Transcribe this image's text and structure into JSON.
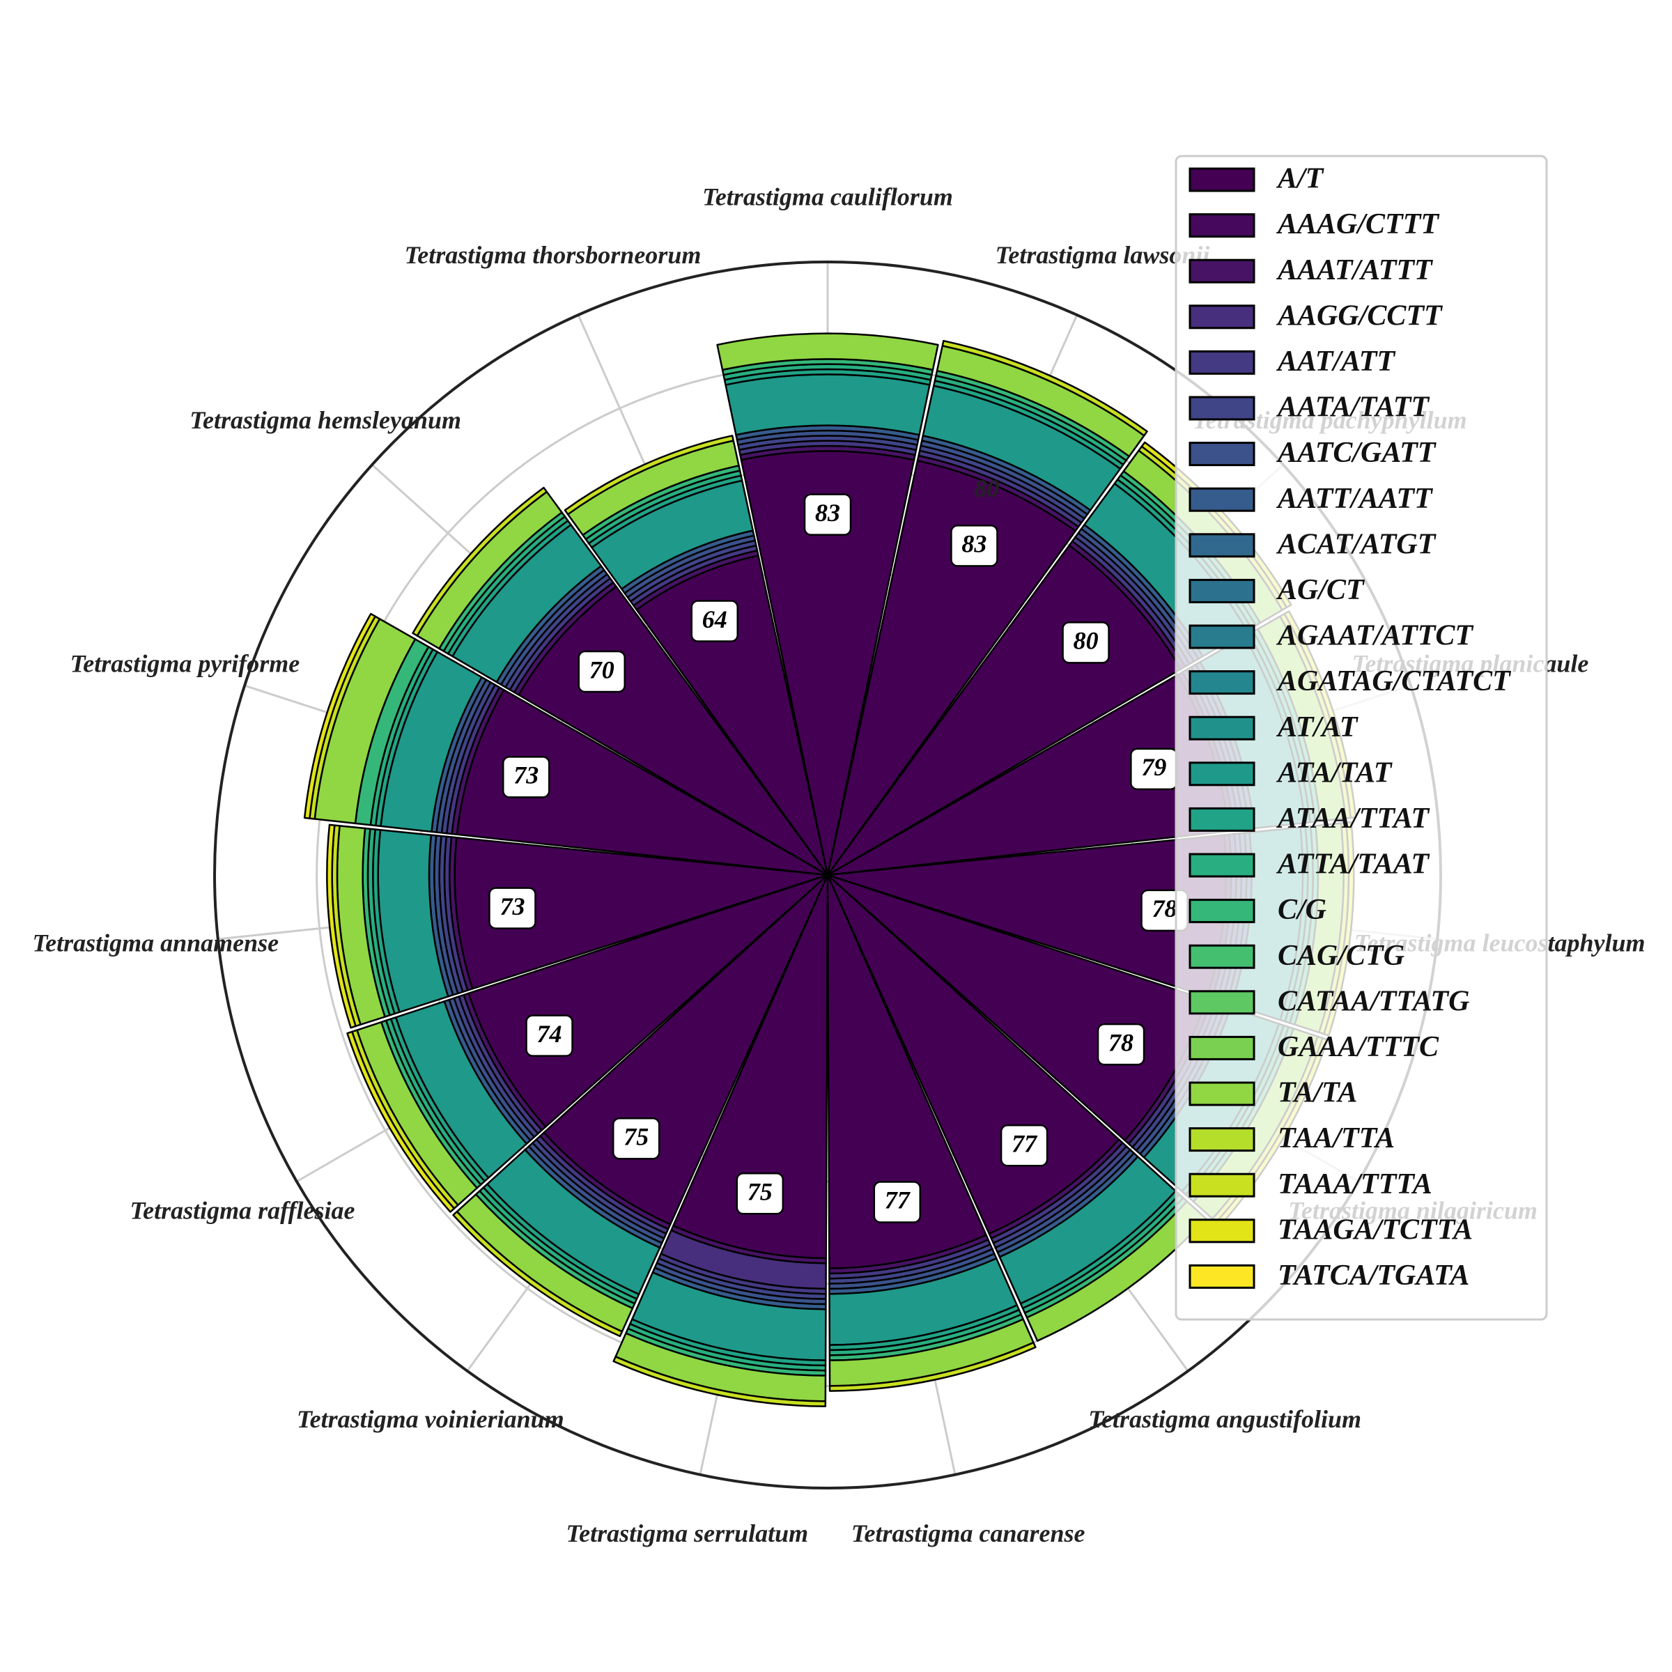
{
  "chart_data": {
    "type": "polar-stacked-bar",
    "title": "",
    "categories": [
      "Tetrastigma cauliflorum",
      "Tetrastigma lawsonii",
      "Tetrastigma pachyphyllum",
      "Tetrastigma planicaule",
      "Tetrastigma leucostaphylum",
      "Tetrastigma nilagiricum",
      "Tetrastigma angustifolium",
      "Tetrastigma canarense",
      "Tetrastigma serrulatum",
      "Tetrastigma voinierianum",
      "Tetrastigma rafflesiae",
      "Tetrastigma annamense",
      "Tetrastigma pyriforme",
      "Tetrastigma hemsleyanum",
      "Tetrastigma thorsborneorum"
    ],
    "radial_ticks": [
      20,
      40,
      60,
      80,
      100
    ],
    "radial_tick_labels_shown": [
      "80"
    ],
    "rmax": 120,
    "grid": true,
    "legend_position": "upper-right",
    "series": [
      {
        "name": "A/T",
        "color": "#440154",
        "values": [
          83,
          83,
          80,
          79,
          78,
          78,
          77,
          77,
          75,
          75,
          74,
          73,
          73,
          70,
          64
        ]
      },
      {
        "name": "AAAG/CTTT",
        "color": "#46085c",
        "values": [
          0,
          0,
          0,
          0,
          0,
          0,
          0,
          0,
          0,
          0,
          0,
          0,
          0,
          0,
          0
        ]
      },
      {
        "name": "AAAT/ATTT",
        "color": "#471365",
        "values": [
          1,
          1,
          1,
          1,
          1,
          1,
          1,
          1,
          1,
          1,
          1,
          1,
          1,
          1,
          1
        ]
      },
      {
        "name": "AAGG/CCTT",
        "color": "#472f7d",
        "values": [
          0,
          0,
          0,
          0,
          0,
          0,
          0,
          0,
          5,
          0,
          0,
          0,
          0,
          0,
          0
        ]
      },
      {
        "name": "AAT/ATT",
        "color": "#443983",
        "values": [
          1,
          1,
          1,
          1,
          1,
          1,
          1,
          1,
          1,
          1,
          1,
          1,
          1,
          1,
          1
        ]
      },
      {
        "name": "AATA/TATT",
        "color": "#404588",
        "values": [
          1,
          1,
          1,
          1,
          1,
          1,
          1,
          1,
          1,
          1,
          1,
          1,
          1,
          1,
          1
        ]
      },
      {
        "name": "AATC/GATT",
        "color": "#3b528b",
        "values": [
          1,
          1,
          1,
          1,
          1,
          1,
          1,
          1,
          1,
          1,
          1,
          1,
          1,
          1,
          1
        ]
      },
      {
        "name": "AATT/AATT",
        "color": "#365c8d",
        "values": [
          1,
          1,
          1,
          1,
          1,
          1,
          1,
          1,
          1,
          1,
          1,
          1,
          1,
          1,
          1
        ]
      },
      {
        "name": "ACAT/ATGT",
        "color": "#31688e",
        "values": [
          0,
          0,
          0,
          0,
          0,
          0,
          0,
          0,
          0,
          0,
          0,
          0,
          0,
          0,
          0
        ]
      },
      {
        "name": "AG/CT",
        "color": "#2c728e",
        "values": [
          0,
          0,
          0,
          0,
          0,
          0,
          0,
          0,
          0,
          0,
          0,
          0,
          0,
          0,
          0
        ]
      },
      {
        "name": "AGAAT/ATTCT",
        "color": "#287c8e",
        "values": [
          0,
          0,
          0,
          0,
          0,
          0,
          0,
          0,
          0,
          0,
          0,
          0,
          0,
          0,
          0
        ]
      },
      {
        "name": "AGATAG/CTATCT",
        "color": "#24868e",
        "values": [
          0,
          0,
          0,
          0,
          0,
          0,
          0,
          0,
          0,
          0,
          0,
          0,
          0,
          0,
          0
        ]
      },
      {
        "name": "AT/AT",
        "color": "#21918c",
        "values": [
          0,
          0,
          0,
          0,
          0,
          0,
          0,
          0,
          0,
          0,
          0,
          0,
          0,
          0,
          0
        ]
      },
      {
        "name": "ATA/TAT",
        "color": "#1f998a",
        "values": [
          10,
          10,
          10,
          10,
          10,
          10,
          10,
          10,
          10,
          10,
          10,
          10,
          10,
          10,
          10
        ]
      },
      {
        "name": "ATAA/TTAT",
        "color": "#20a386",
        "values": [
          1,
          1,
          1,
          1,
          1,
          1,
          1,
          1,
          1,
          1,
          1,
          1,
          1,
          1,
          1
        ]
      },
      {
        "name": "ATTA/TAAT",
        "color": "#28ae80",
        "values": [
          1,
          1,
          1,
          1,
          1,
          1,
          1,
          1,
          1,
          1,
          1,
          1,
          1,
          1,
          1
        ]
      },
      {
        "name": "C/G",
        "color": "#35b779",
        "values": [
          1,
          1,
          1,
          1,
          1,
          1,
          1,
          1,
          1,
          1,
          1,
          1,
          3,
          1,
          1
        ]
      },
      {
        "name": "CAG/CTG",
        "color": "#44bf70",
        "values": [
          0,
          0,
          0,
          0,
          0,
          0,
          0,
          0,
          0,
          0,
          0,
          0,
          0,
          0,
          0
        ]
      },
      {
        "name": "CATAA/TTATG",
        "color": "#5ec962",
        "values": [
          0,
          0,
          0,
          0,
          0,
          0,
          0,
          0,
          0,
          0,
          0,
          0,
          0,
          0,
          0
        ]
      },
      {
        "name": "GAAA/TTTC",
        "color": "#7ad151",
        "values": [
          0,
          0,
          0,
          0,
          0,
          0,
          0,
          0,
          0,
          0,
          0,
          0,
          0,
          0,
          0
        ]
      },
      {
        "name": "TA/TA",
        "color": "#90d743",
        "values": [
          5,
          5,
          5,
          5,
          5,
          5,
          5,
          5,
          5,
          5,
          5,
          5,
          8,
          5,
          5
        ]
      },
      {
        "name": "TAA/TTA",
        "color": "#b5de2b",
        "values": [
          0,
          0,
          0,
          0,
          0,
          0,
          0,
          0,
          0,
          0,
          0,
          0,
          0,
          0,
          0
        ]
      },
      {
        "name": "TAAA/TTTA",
        "color": "#c8e020",
        "values": [
          0,
          1,
          1,
          1,
          1,
          1,
          0,
          1,
          1,
          1,
          1,
          1,
          1,
          1,
          1
        ]
      },
      {
        "name": "TAAGA/TCTTA",
        "color": "#e2e418",
        "values": [
          0,
          0,
          1,
          1,
          1,
          1,
          0,
          0,
          0,
          0,
          1,
          1,
          1,
          0,
          0
        ]
      },
      {
        "name": "TATCA/TGATA",
        "color": "#fde725",
        "values": [
          0,
          0,
          0,
          0,
          0,
          0,
          0,
          0,
          0,
          0,
          0,
          0,
          0,
          0,
          0
        ]
      }
    ]
  }
}
